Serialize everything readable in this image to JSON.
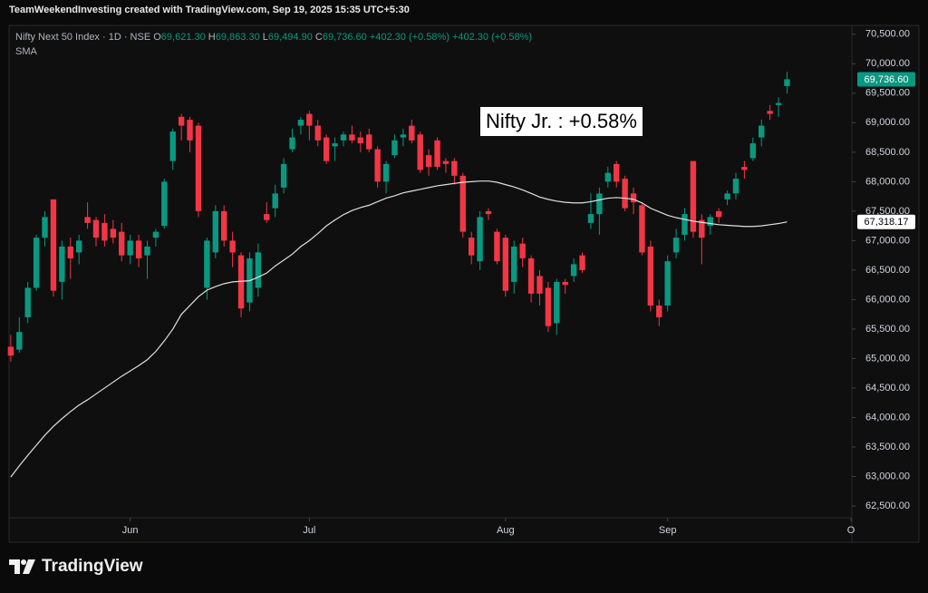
{
  "header": {
    "text": "TeamWeekendInvesting created with TradingView.com, Sep 19, 2025 15:35 UTC+5:30"
  },
  "footer": {
    "logo": "TradingView"
  },
  "chart_data": {
    "type": "candlestick",
    "title": "Nifty Next 50 Index · 1D · NSE",
    "ohlc_legend": [
      {
        "key": "O",
        "value": "69,621.30"
      },
      {
        "key": "H",
        "value": "69,863.30"
      },
      {
        "key": "L",
        "value": "69,494.90"
      },
      {
        "key": "C",
        "value": "69,736.60"
      }
    ],
    "change_labels": [
      "+402.30 (+0.58%)",
      "+402.30 (+0.58%)"
    ],
    "annotation": "Nifty Jr. : +0.58%",
    "up_color": "#089981",
    "down_color": "#f23645",
    "grid": false,
    "xlim": [
      -0.2,
      98.6
    ],
    "xticks": [
      {
        "value": 14,
        "label": "Jun"
      },
      {
        "value": 35,
        "label": "Jul"
      },
      {
        "value": 58,
        "label": "Aug"
      },
      {
        "value": 77,
        "label": "Sep"
      },
      {
        "value": 98.5,
        "label": "O"
      }
    ],
    "ylim": [
      61900,
      70620
    ],
    "yticks": [
      {
        "value": 62500,
        "label": "62,500.00"
      },
      {
        "value": 63000,
        "label": "63,000.00"
      },
      {
        "value": 63500,
        "label": "63,500.00"
      },
      {
        "value": 64000,
        "label": "64,000.00"
      },
      {
        "value": 64500,
        "label": "64,500.00"
      },
      {
        "value": 65000,
        "label": "65,000.00"
      },
      {
        "value": 65500,
        "label": "65,500.00"
      },
      {
        "value": 66000,
        "label": "66,000.00"
      },
      {
        "value": 66500,
        "label": "66,500.00"
      },
      {
        "value": 67000,
        "label": "67,000.00"
      },
      {
        "value": 67500,
        "label": "67,500.00"
      },
      {
        "value": 68000,
        "label": "68,000.00"
      },
      {
        "value": 68500,
        "label": "68,500.00"
      },
      {
        "value": 69000,
        "label": "69,000.00"
      },
      {
        "value": 69500,
        "label": "69,500.00"
      },
      {
        "value": 70000,
        "label": "70,000.00"
      },
      {
        "value": 70500,
        "label": "70,500.00"
      }
    ],
    "open": [
      65200,
      65150,
      65700,
      66200,
      67050,
      67700,
      66300,
      66900,
      66800,
      67400,
      67350,
      67300,
      67200,
      67150,
      66750,
      67000,
      66750,
      67050,
      67250,
      68350,
      69100,
      69050,
      68950,
      66200,
      66800,
      67500,
      67000,
      66750,
      65950,
      66200,
      67450,
      67550,
      67900,
      68550,
      68950,
      69150,
      68950,
      68750,
      68600,
      68700,
      68800,
      68750,
      68800,
      68550,
      68000,
      68450,
      68750,
      68950,
      68800,
      68450,
      68700,
      68350,
      68350,
      68100,
      67050,
      66650,
      67500,
      67150,
      67050,
      66300,
      66950,
      66700,
      66400,
      66200,
      65600,
      66300,
      66400,
      66750,
      67300,
      67450,
      68000,
      68300,
      68050,
      67800,
      67600,
      66900,
      65900,
      65900,
      66800,
      67100,
      68350,
      67350,
      67250,
      67500,
      67700,
      67800,
      68250,
      68400,
      68750,
      69200,
      69300,
      69621.3
    ],
    "high": [
      65400,
      65700,
      66300,
      67100,
      67500,
      67700,
      67000,
      67050,
      67100,
      67650,
      67400,
      67450,
      67350,
      67300,
      67100,
      67100,
      67000,
      67200,
      68050,
      68900,
      69150,
      69100,
      69000,
      67050,
      67600,
      67600,
      67150,
      66800,
      66800,
      66950,
      67650,
      67950,
      68400,
      68900,
      69100,
      69200,
      69050,
      68800,
      68750,
      68850,
      68950,
      68850,
      68900,
      68600,
      68350,
      68800,
      68900,
      69050,
      68850,
      68550,
      68750,
      68400,
      68400,
      68150,
      67150,
      67500,
      67550,
      67200,
      67100,
      67000,
      67050,
      66750,
      66500,
      66300,
      66350,
      66350,
      66700,
      66800,
      67800,
      67900,
      68250,
      68350,
      68100,
      67900,
      67650,
      67000,
      66000,
      66750,
      67200,
      67550,
      68350,
      67450,
      67450,
      67550,
      67850,
      68150,
      68350,
      68750,
      69050,
      69300,
      69430,
      69863.3
    ],
    "low": [
      64950,
      65100,
      65600,
      66150,
      66900,
      66050,
      66000,
      66350,
      66600,
      67200,
      66900,
      66900,
      66950,
      66650,
      66600,
      66550,
      66350,
      66900,
      67200,
      68200,
      68700,
      68500,
      67400,
      66000,
      66700,
      66900,
      66550,
      65700,
      65800,
      66050,
      67300,
      67400,
      67800,
      68500,
      68800,
      68700,
      68600,
      68300,
      68350,
      68600,
      68650,
      68500,
      68500,
      67900,
      67800,
      68400,
      68600,
      68650,
      68150,
      68100,
      68200,
      68150,
      67950,
      67050,
      66600,
      66500,
      67350,
      66600,
      66050,
      66100,
      66550,
      65950,
      65900,
      65450,
      65400,
      66100,
      66300,
      66450,
      67200,
      67100,
      67900,
      67900,
      67500,
      67450,
      66750,
      65800,
      65550,
      65800,
      66700,
      67000,
      67050,
      66600,
      67100,
      67300,
      67600,
      67700,
      68050,
      68350,
      68600,
      69050,
      69100,
      69494.9
    ],
    "close": [
      65050,
      65450,
      66200,
      67050,
      67400,
      66150,
      66900,
      66700,
      67000,
      67300,
      67050,
      67000,
      67050,
      66750,
      67000,
      66700,
      66900,
      67150,
      68000,
      68850,
      68950,
      68700,
      67500,
      67000,
      67500,
      67000,
      66800,
      65850,
      66700,
      66800,
      67350,
      67800,
      68300,
      68750,
      69050,
      68950,
      68700,
      68350,
      68650,
      68800,
      68700,
      68650,
      68550,
      68000,
      68300,
      68700,
      68800,
      68700,
      68200,
      68250,
      68250,
      68300,
      68100,
      67150,
      66750,
      67400,
      67450,
      66650,
      66150,
      66900,
      66700,
      66100,
      66100,
      65550,
      66300,
      66250,
      66600,
      66500,
      67450,
      67800,
      68150,
      68000,
      67550,
      67650,
      66800,
      65900,
      65700,
      66650,
      67050,
      67450,
      67150,
      67050,
      67400,
      67400,
      67800,
      68050,
      68200,
      68650,
      68950,
      69150,
      69334.3,
      69736.6
    ],
    "sma": {
      "name": "SMA",
      "color": "#e0e0e0",
      "values": [
        62990,
        63180,
        63360,
        63530,
        63700,
        63850,
        63980,
        64100,
        64210,
        64300,
        64400,
        64500,
        64600,
        64700,
        64790,
        64880,
        64980,
        65120,
        65300,
        65500,
        65750,
        65900,
        66050,
        66160,
        66220,
        66270,
        66300,
        66310,
        66320,
        66380,
        66450,
        66570,
        66670,
        66770,
        66900,
        67000,
        67120,
        67250,
        67350,
        67440,
        67510,
        67560,
        67600,
        67660,
        67720,
        67760,
        67810,
        67840,
        67870,
        67900,
        67930,
        67950,
        67970,
        67990,
        68000,
        68010,
        68010,
        67990,
        67950,
        67910,
        67860,
        67800,
        67740,
        67700,
        67670,
        67650,
        67640,
        67640,
        67660,
        67690,
        67720,
        67730,
        67720,
        67700,
        67640,
        67550,
        67490,
        67430,
        67390,
        67360,
        67330,
        67310,
        67290,
        67270,
        67260,
        67250,
        67240,
        67240,
        67250,
        67270,
        67290,
        67318.17
      ]
    },
    "price_tags": [
      {
        "value": 69736.6,
        "label": "69,736.60",
        "color": "#089981",
        "text_color": "#ffffff"
      },
      {
        "value": 67318.17,
        "label": "67,318.17",
        "color": "#ffffff",
        "text_color": "#000000"
      }
    ]
  }
}
